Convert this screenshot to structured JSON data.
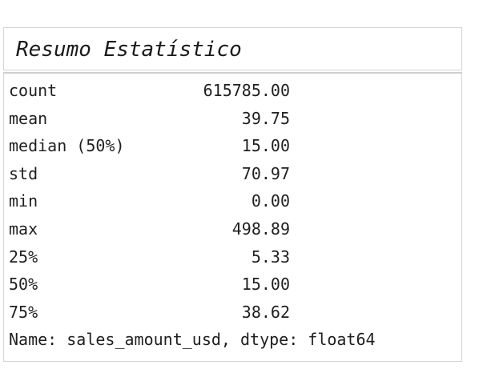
{
  "title": "Resumo Estatístico",
  "summary": {
    "rows": [
      {
        "label": "count",
        "value": "615785.00"
      },
      {
        "label": "mean",
        "value": "39.75"
      },
      {
        "label": "median (50%)",
        "value": "15.00"
      },
      {
        "label": "std",
        "value": "70.97"
      },
      {
        "label": "min",
        "value": "0.00"
      },
      {
        "label": "max",
        "value": "498.89"
      },
      {
        "label": "25%",
        "value": "5.33"
      },
      {
        "label": "50%",
        "value": "15.00"
      },
      {
        "label": "75%",
        "value": "38.62"
      }
    ],
    "footer": "Name: sales_amount_usd, dtype: float64"
  }
}
